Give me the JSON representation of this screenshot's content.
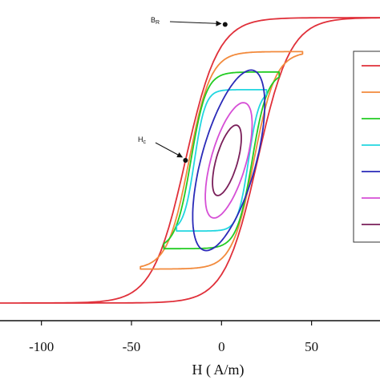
{
  "chart_data": {
    "type": "line",
    "title": "",
    "xlabel": "H ( A/m)",
    "ylabel": "",
    "xlim": [
      -123,
      88
    ],
    "ylim": [
      -1.18,
      1.18
    ],
    "xticks": [
      {
        "value": -100,
        "label": "-100"
      },
      {
        "value": -50,
        "label": "-50"
      },
      {
        "value": 0,
        "label": "0"
      },
      {
        "value": 50,
        "label": "50"
      }
    ],
    "legend": {
      "placement": "right",
      "entries_visible": 7
    },
    "series": [
      {
        "color": "#e0303a",
        "type": "loop",
        "max_h": 180,
        "coercivity": 20,
        "remanence": 1.0,
        "saturation": 1.05,
        "steepness": 2.2
      },
      {
        "color": "#f28a3c",
        "type": "loop",
        "max_h": 45,
        "coercivity": 18,
        "remanence": 0.78,
        "saturation": 0.8,
        "steepness": 3.0
      },
      {
        "color": "#22cc22",
        "type": "loop",
        "max_h": 32,
        "coercivity": 17,
        "remanence": 0.62,
        "saturation": 0.65,
        "steepness": 4.0
      },
      {
        "color": "#22d6e0",
        "type": "loop",
        "max_h": 25,
        "coercivity": 15,
        "remanence": 0.49,
        "saturation": 0.52,
        "steepness": 5.0
      },
      {
        "color": "#2a2ab8",
        "type": "ellipse",
        "center_h": 4,
        "center_m": 0,
        "half_h": 20,
        "half_m": 0.52,
        "tilt_deg": 62
      },
      {
        "color": "#d64fd6",
        "type": "ellipse",
        "center_h": 4,
        "center_m": 0,
        "half_h": 13,
        "half_m": 0.33,
        "tilt_deg": 64
      },
      {
        "color": "#7a1f5a",
        "type": "ellipse",
        "center_h": 3,
        "center_m": 0,
        "half_h": 8,
        "half_m": 0.2,
        "tilt_deg": 66
      }
    ],
    "annotations": [
      {
        "label": "B",
        "sub": "R",
        "point": {
          "x": 2,
          "y": 1.0
        }
      },
      {
        "label": "H",
        "sub": "c",
        "point": {
          "x": -20,
          "y": 0.0
        }
      }
    ]
  }
}
